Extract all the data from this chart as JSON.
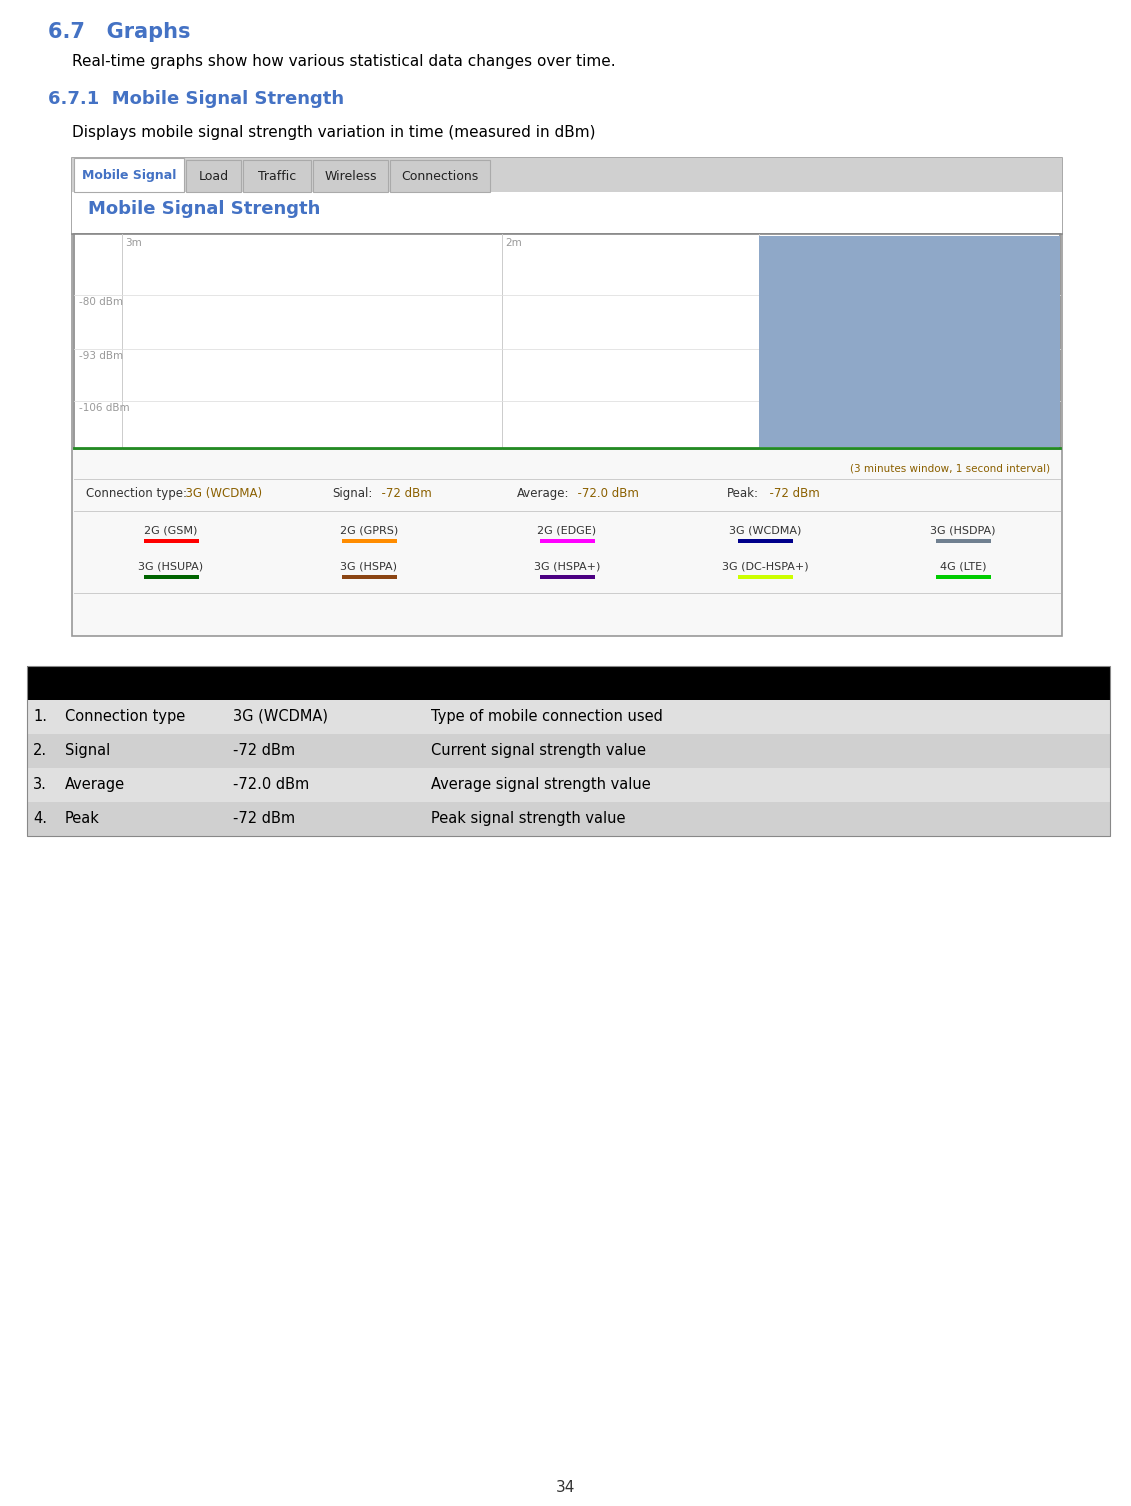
{
  "page_number": "34",
  "section_title": "6.7   Graphs",
  "section_title_color": "#4472c4",
  "section_body": "Real-time graphs show how various statistical data changes over time.",
  "subsection_title": "6.7.1  Mobile Signal Strength",
  "subsection_title_color": "#4472c4",
  "subsection_body": "Displays mobile signal strength variation in time (measured in dBm)",
  "tab_labels": [
    "Mobile Signal",
    "Load",
    "Traffic",
    "Wireless",
    "Connections"
  ],
  "tab_active_text_color": "#4472c4",
  "chart_title": "Mobile Signal Strength",
  "chart_title_color": "#4472c4",
  "chart_bar_color": "#8fa8c8",
  "chart_note": "(3 minutes window, 1 second interval)",
  "chart_note_color": "#8b6000",
  "info_connection_label": "Connection type:",
  "info_connection_value": "  3G (WCDMA)",
  "info_signal_label": "Signal:",
  "info_signal_value": "  -72 dBm",
  "info_average_label": "Average:",
  "info_average_value": "  -72.0 dBm",
  "info_peak_label": "Peak:",
  "info_peak_value": "  -72 dBm",
  "info_label_color": "#333333",
  "info_value_color": "#8b6000",
  "legend_row1": [
    {
      "label": "2G (GSM)",
      "color": "#ff0000"
    },
    {
      "label": "2G (GPRS)",
      "color": "#ff8c00"
    },
    {
      "label": "2G (EDGE)",
      "color": "#ff00ff"
    },
    {
      "label": "3G (WCDMA)",
      "color": "#00008b"
    },
    {
      "label": "3G (HSDPA)",
      "color": "#708090"
    }
  ],
  "legend_row2": [
    {
      "label": "3G (HSUPA)",
      "color": "#006400"
    },
    {
      "label": "3G (HSPA)",
      "color": "#8b4513"
    },
    {
      "label": "3G (HSPA+)",
      "color": "#4b0082"
    },
    {
      "label": "3G (DC-HSPA+)",
      "color": "#ccff00"
    },
    {
      "label": "4G (LTE)",
      "color": "#00cc00"
    }
  ],
  "table_header_bg": "#000000",
  "table_row_bg1": "#e0e0e0",
  "table_row_bg2": "#d0d0d0",
  "table_rows": [
    [
      "1.",
      "Connection type",
      "3G (WCDMA)",
      "Type of mobile connection used"
    ],
    [
      "2.",
      "Signal",
      "-72 dBm",
      "Current signal strength value"
    ],
    [
      "3.",
      "Average",
      "-72.0 dBm",
      "Average signal strength value"
    ],
    [
      "4.",
      "Peak",
      "-72 dBm",
      "Peak signal strength value"
    ]
  ],
  "page_num": "34"
}
